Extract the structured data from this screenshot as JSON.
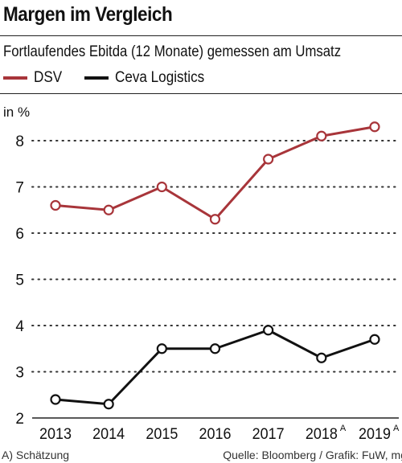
{
  "title": "Margen im Vergleich",
  "subtitle": "Fortlaufendes Ebitda (12 Monate) gemessen am Umsatz",
  "unit": "in %",
  "footnote": "A) Schätzung",
  "source": "Quelle: Bloomberg / Grafik: FuW, mg",
  "colors": {
    "DSV": "#a8353a",
    "Ceva Logistics": "#111111",
    "grid": "#333333"
  },
  "chart_data": {
    "type": "line",
    "title": "Margen im Vergleich",
    "subtitle": "Fortlaufendes Ebitda (12 Monate) gemessen am Umsatz",
    "ylabel": "in %",
    "x": [
      "2013",
      "2014",
      "2015",
      "2016",
      "2017",
      "2018",
      "2019"
    ],
    "x_superscripts": [
      "",
      "",
      "",
      "",
      "",
      "A",
      "A"
    ],
    "ylim": [
      2,
      8.6
    ],
    "yticks": [
      2,
      3,
      4,
      5,
      6,
      7,
      8
    ],
    "grid": "horizontal dotted",
    "legend_position": "top-left",
    "series": [
      {
        "name": "DSV",
        "color": "#a8353a",
        "values": [
          6.6,
          6.5,
          7.0,
          6.3,
          7.6,
          8.1,
          8.3
        ]
      },
      {
        "name": "Ceva Logistics",
        "color": "#111111",
        "values": [
          2.4,
          2.3,
          3.5,
          3.5,
          3.9,
          3.3,
          3.7
        ]
      }
    ]
  }
}
